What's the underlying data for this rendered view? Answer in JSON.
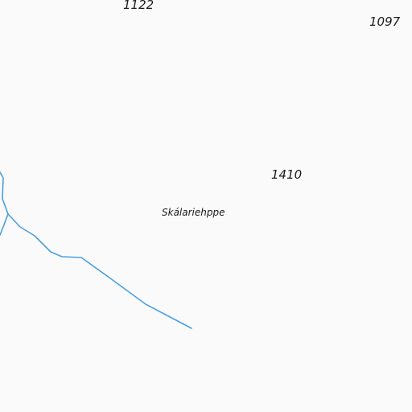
{
  "map": {
    "background_color": "#fafafa",
    "water_color": "#4a9fe0",
    "elevation_labels": [
      "1122",
      "1097",
      "1410"
    ],
    "place_names": [
      "Skálariehppe"
    ]
  }
}
